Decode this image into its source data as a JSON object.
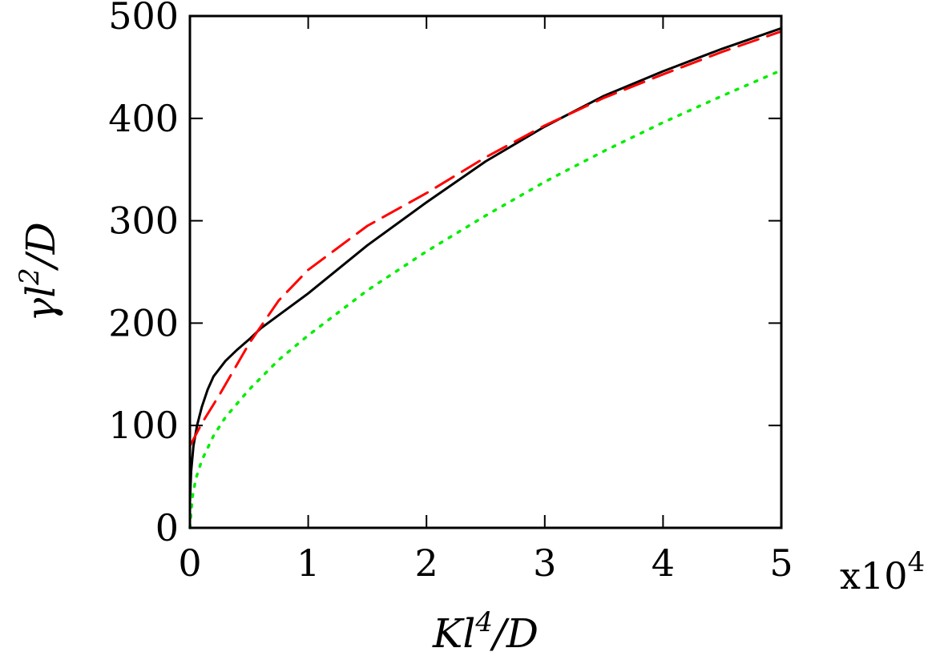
{
  "chart_data": {
    "type": "line",
    "title": "",
    "xlabel": {
      "base": "Kl",
      "sup": "4",
      "tail": "/D"
    },
    "ylabel": {
      "base": "γl",
      "sup": "2",
      "tail": "/D"
    },
    "x_multiplier": {
      "base": "x10",
      "sup": "4"
    },
    "xlim": [
      0,
      5
    ],
    "ylim": [
      0,
      500
    ],
    "xticks": [
      "0",
      "1",
      "2",
      "3",
      "4",
      "5"
    ],
    "yticks": [
      "0",
      "100",
      "200",
      "300",
      "400",
      "500"
    ],
    "grid": false,
    "legend": "none",
    "series": [
      {
        "style": "solid",
        "color": "#000000",
        "x": [
          0,
          0.01,
          0.03,
          0.06,
          0.1,
          0.15,
          0.2,
          0.3,
          0.4,
          0.5,
          0.6,
          0.8,
          1.0,
          1.5,
          2.0,
          2.5,
          3.0,
          3.5,
          4.0,
          4.5,
          5.0
        ],
        "y": [
          25,
          55,
          80,
          100,
          118,
          135,
          148,
          163,
          174,
          184,
          195,
          212,
          229,
          276,
          318,
          358,
          392,
          422,
          446,
          468,
          488
        ]
      },
      {
        "style": "dashed",
        "color": "#ff0000",
        "x": [
          0,
          0.1,
          0.25,
          0.5,
          0.75,
          1.0,
          1.5,
          2.0,
          2.5,
          3.0,
          3.5,
          4.0,
          4.5,
          5.0
        ],
        "y": [
          80,
          102,
          130,
          180,
          222,
          252,
          295,
          327,
          362,
          393,
          420,
          443,
          465,
          485
        ]
      },
      {
        "style": "dotted",
        "color": "#00ee00",
        "x": [
          0,
          0.02,
          0.05,
          0.1,
          0.2,
          0.3,
          0.5,
          0.75,
          1.0,
          1.5,
          2.0,
          2.5,
          3.0,
          3.5,
          4.0,
          4.5,
          5.0
        ],
        "y": [
          0,
          30,
          48,
          66,
          90,
          108,
          135,
          164,
          188,
          232,
          270,
          305,
          338,
          368,
          396,
          422,
          447
        ]
      }
    ]
  }
}
